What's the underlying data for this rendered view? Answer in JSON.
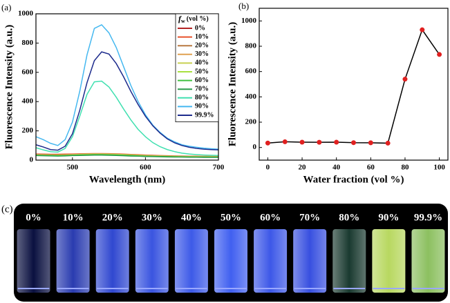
{
  "chart_data": [
    {
      "type": "line",
      "label": "(a)",
      "x_label": "Wavelength (nm)",
      "y_label": "Fluorescence Intensity (a.u.)",
      "xlim": [
        450,
        700
      ],
      "xticks": [
        500,
        600,
        700
      ],
      "ylim": [
        0,
        1000
      ],
      "yticks": [
        0,
        200,
        400,
        600,
        800,
        1000
      ],
      "legend": {
        "position": "upper right",
        "title_symbol": "f",
        "title_subscript": "w",
        "title_unit": "(vol %)"
      },
      "x": [
        450,
        460,
        470,
        480,
        490,
        500,
        510,
        520,
        530,
        540,
        550,
        560,
        570,
        580,
        590,
        600,
        610,
        620,
        630,
        640,
        650,
        660,
        670,
        680,
        690,
        700
      ],
      "series": [
        {
          "name": "0%",
          "color": "#b22222",
          "values": [
            40,
            39,
            38,
            37,
            37,
            37,
            37,
            36,
            36,
            36,
            35,
            35,
            34,
            33,
            32,
            31,
            30,
            29,
            28,
            27,
            26,
            26,
            25,
            25,
            24,
            24
          ]
        },
        {
          "name": "10%",
          "color": "#e8502a",
          "values": [
            42,
            41,
            40,
            40,
            41,
            42,
            43,
            44,
            45,
            45,
            44,
            43,
            41,
            39,
            37,
            35,
            33,
            31,
            30,
            29,
            28,
            27,
            27,
            26,
            26,
            25
          ]
        },
        {
          "name": "20%",
          "color": "#b87840",
          "values": [
            38,
            37,
            36,
            35,
            36,
            38,
            40,
            41,
            42,
            42,
            41,
            40,
            38,
            36,
            34,
            32,
            30,
            29,
            28,
            27,
            26,
            26,
            25,
            25,
            24,
            24
          ]
        },
        {
          "name": "30%",
          "color": "#e0a050",
          "values": [
            37,
            36,
            35,
            34,
            35,
            37,
            39,
            40,
            41,
            41,
            40,
            39,
            37,
            35,
            33,
            31,
            29,
            28,
            27,
            26,
            25,
            25,
            24,
            24,
            23,
            23
          ]
        },
        {
          "name": "40%",
          "color": "#c8d050",
          "values": [
            36,
            35,
            34,
            34,
            35,
            37,
            39,
            41,
            42,
            42,
            41,
            40,
            38,
            36,
            33,
            31,
            29,
            28,
            27,
            26,
            25,
            24,
            24,
            23,
            23,
            22
          ]
        },
        {
          "name": "50%",
          "color": "#a8e040",
          "values": [
            34,
            33,
            32,
            31,
            32,
            34,
            36,
            37,
            38,
            38,
            37,
            36,
            34,
            32,
            30,
            28,
            27,
            26,
            25,
            24,
            23,
            23,
            22,
            22,
            21,
            21
          ]
        },
        {
          "name": "60%",
          "color": "#40c040",
          "values": [
            33,
            32,
            31,
            30,
            31,
            33,
            35,
            36,
            37,
            37,
            36,
            35,
            33,
            31,
            29,
            27,
            26,
            25,
            24,
            23,
            22,
            22,
            21,
            21,
            20,
            20
          ]
        },
        {
          "name": "70%",
          "color": "#2a9a4a",
          "values": [
            31,
            30,
            29,
            28,
            29,
            31,
            32,
            33,
            34,
            34,
            33,
            32,
            30,
            28,
            27,
            25,
            24,
            23,
            22,
            21,
            21,
            20,
            20,
            19,
            19,
            19
          ]
        },
        {
          "name": "80%",
          "color": "#40e0b0",
          "values": [
            85,
            70,
            58,
            55,
            80,
            160,
            300,
            450,
            535,
            540,
            500,
            430,
            350,
            275,
            210,
            160,
            120,
            92,
            72,
            58,
            48,
            42,
            38,
            35,
            33,
            32
          ]
        },
        {
          "name": "90%",
          "color": "#45b8f0",
          "values": [
            160,
            140,
            115,
            100,
            140,
            260,
            470,
            720,
            900,
            925,
            870,
            770,
            640,
            510,
            400,
            310,
            240,
            190,
            150,
            125,
            105,
            95,
            88,
            82,
            78,
            75
          ]
        },
        {
          "name": "99.9%",
          "color": "#1c2a8c",
          "values": [
            105,
            90,
            72,
            68,
            95,
            180,
            340,
            530,
            680,
            740,
            725,
            660,
            570,
            470,
            380,
            300,
            235,
            185,
            145,
            118,
            100,
            88,
            80,
            75,
            72,
            70
          ]
        }
      ]
    },
    {
      "type": "line",
      "label": "(b)",
      "x_label": "Water fraction (vol %)",
      "y_label": "Fluorescence Intensity (a.u.)",
      "xlim": [
        -5,
        105
      ],
      "xticks": [
        0,
        20,
        40,
        60,
        80,
        100
      ],
      "ylim": [
        -100,
        1100
      ],
      "yticks": [
        0,
        200,
        400,
        600,
        800,
        1000
      ],
      "x": [
        0,
        10,
        20,
        30,
        40,
        50,
        60,
        70,
        80,
        90,
        100
      ],
      "series": [
        {
          "color": "#000000",
          "marker_color": "#e02020",
          "values": [
            35,
            45,
            42,
            41,
            42,
            38,
            37,
            34,
            540,
            930,
            735
          ]
        }
      ]
    }
  ],
  "photo": {
    "label": "(c)",
    "labels": [
      "0%",
      "10%",
      "20%",
      "30%",
      "40%",
      "50%",
      "60%",
      "70%",
      "80%",
      "90%",
      "99.9%"
    ]
  }
}
